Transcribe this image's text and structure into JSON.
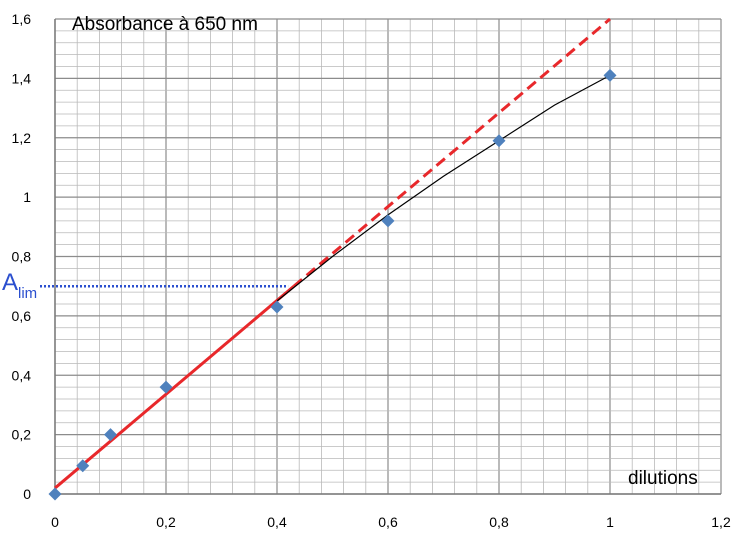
{
  "chart_data": {
    "type": "scatter",
    "title": "Absorbance à 650 nm",
    "xlabel": "dilutions",
    "ylabel": "",
    "xlim": [
      0,
      1.2
    ],
    "ylim": [
      0,
      1.6
    ],
    "x_ticks": [
      "0",
      "0,2",
      "0,4",
      "0,6",
      "0,8",
      "1",
      "1,2"
    ],
    "y_ticks": [
      "0",
      "0,2",
      "0,4",
      "0,6",
      "0,8",
      "1",
      "1,2",
      "1,4",
      "1,6"
    ],
    "x_tick_values": [
      0,
      0.2,
      0.4,
      0.6,
      0.8,
      1.0,
      1.2
    ],
    "y_tick_values": [
      0,
      0.2,
      0.4,
      0.6,
      0.8,
      1.0,
      1.2,
      1.4,
      1.6
    ],
    "grid": true,
    "points": {
      "x": [
        0,
        0.05,
        0.1,
        0.2,
        0.4,
        0.6,
        0.8,
        1.0
      ],
      "y": [
        0.0,
        0.095,
        0.2,
        0.36,
        0.63,
        0.92,
        1.19,
        1.41
      ],
      "color": "#4F81BD"
    },
    "linear_fit": {
      "x": [
        0,
        1.0
      ],
      "y": [
        0.02,
        1.6
      ],
      "solid_until_x": 0.43,
      "color": "#E8282B"
    },
    "curve_fit": {
      "x": [
        0.4,
        0.5,
        0.6,
        0.7,
        0.8,
        0.9,
        1.0
      ],
      "y": [
        0.65,
        0.8,
        0.94,
        1.07,
        1.19,
        1.31,
        1.41
      ],
      "color": "#000000"
    },
    "annotation": {
      "label": "A",
      "subscript": "lim",
      "y": 0.7,
      "x_end": 0.42,
      "color": "#2B4FCF"
    }
  }
}
